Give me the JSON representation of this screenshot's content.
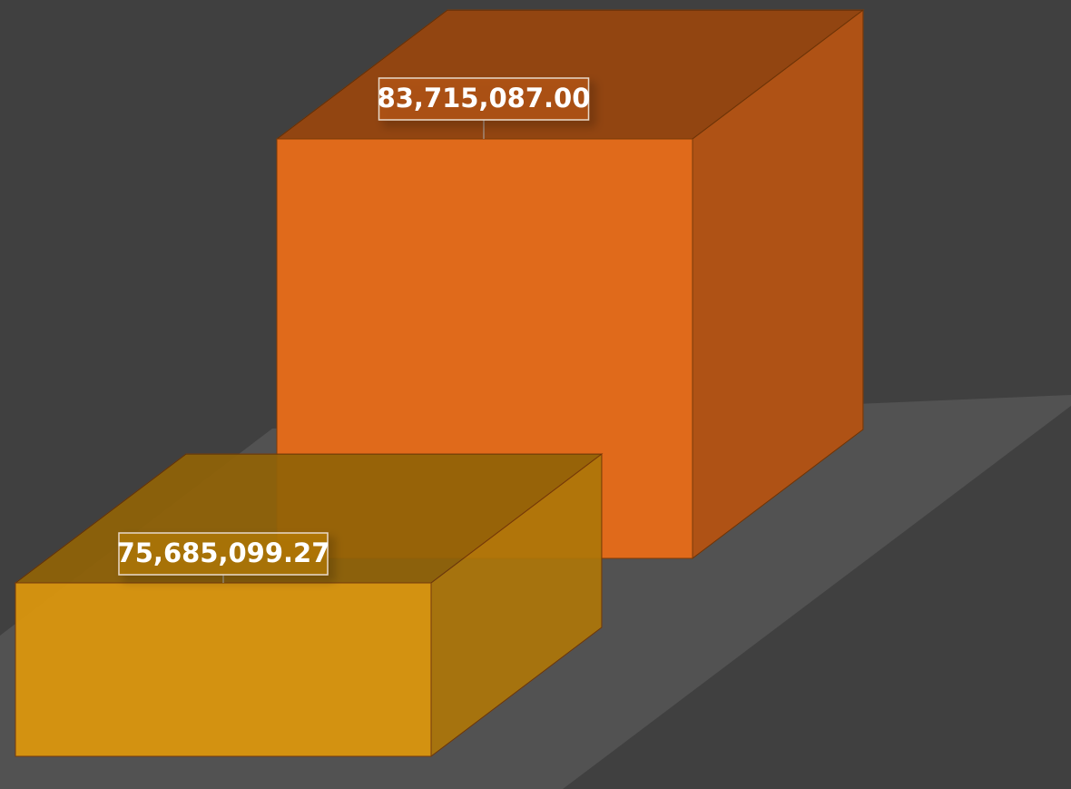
{
  "chart_data": {
    "type": "bar3d",
    "values": [
      83715087.0,
      75685099.27
    ],
    "value_labels": [
      "83,715,087.00",
      "75,685,099.27"
    ],
    "colors": [
      "#e06a1b",
      "#df980c"
    ]
  }
}
